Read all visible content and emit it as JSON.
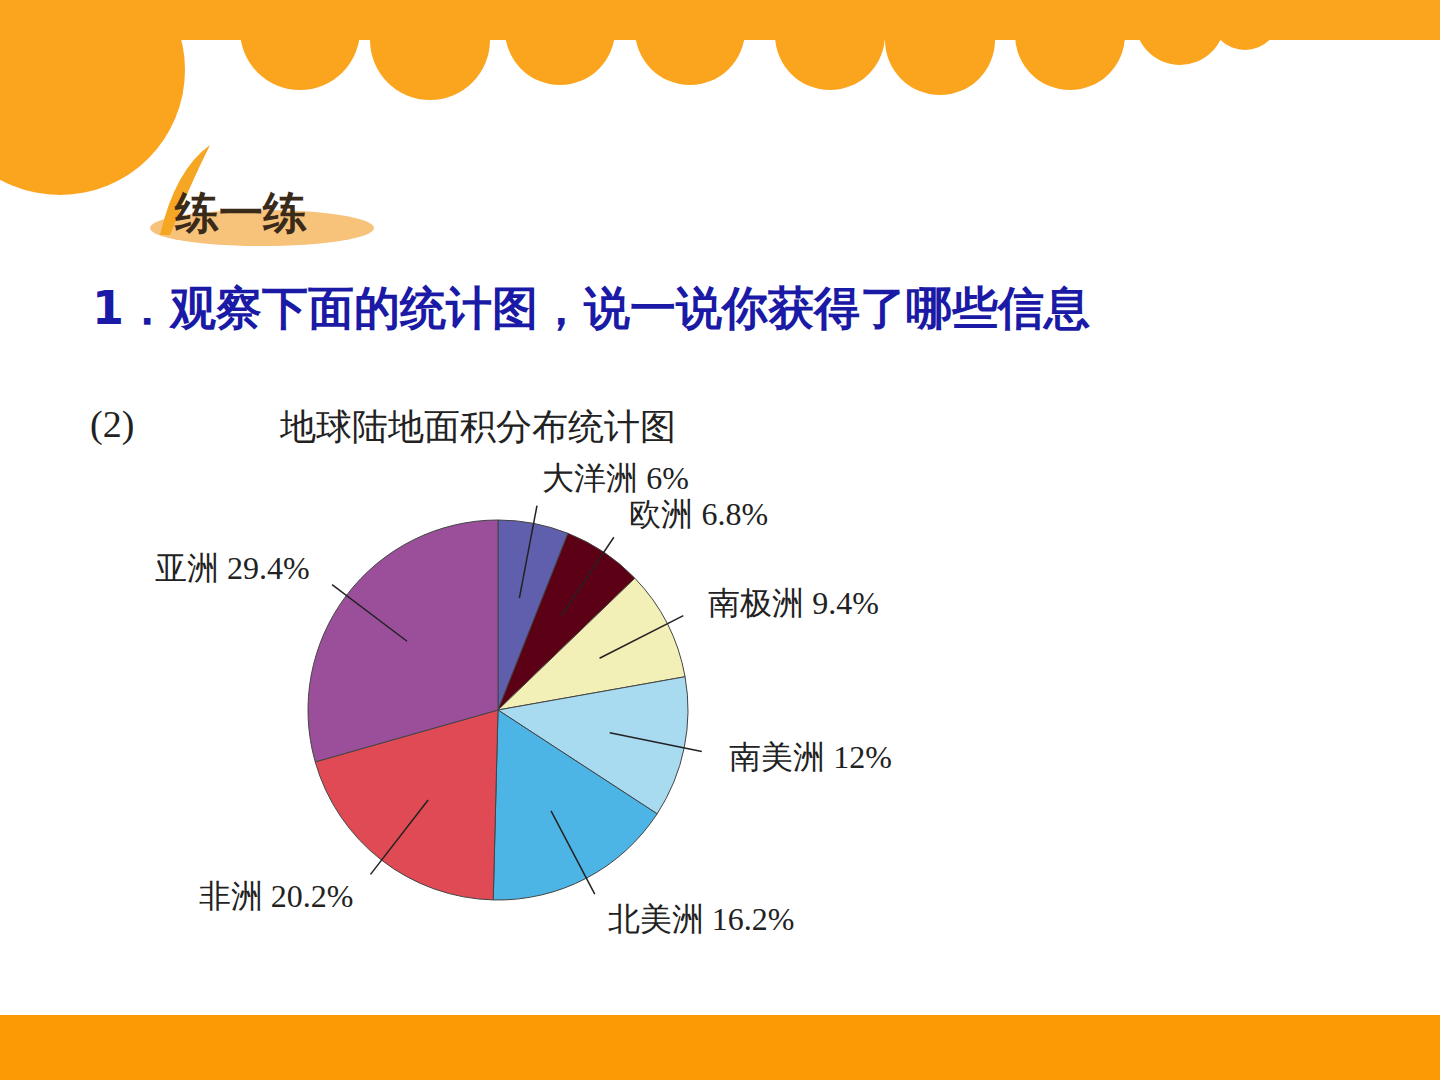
{
  "slide": {
    "badge": "练一练",
    "question": "1．观察下面的统计图，说一说你获得了哪些信息"
  },
  "chart_data": {
    "type": "pie",
    "panel": "(2)",
    "title": "地球陆地面积分布统计图",
    "categories": [
      "大洋洲",
      "欧洲",
      "南极洲",
      "南美洲",
      "北美洲",
      "非洲",
      "亚洲"
    ],
    "values": [
      6,
      6.8,
      9.4,
      12,
      16.2,
      20.2,
      29.4
    ],
    "value_labels": [
      "6%",
      "6.8%",
      "9.4%",
      "12%",
      "16.2%",
      "20.2%",
      "29.4%"
    ],
    "colors": [
      "#5f5fad",
      "#5c0015",
      "#f2f0b6",
      "#a8daf0",
      "#4db5e5",
      "#e04a55",
      "#9b4f9b"
    ],
    "data_labels": true
  }
}
